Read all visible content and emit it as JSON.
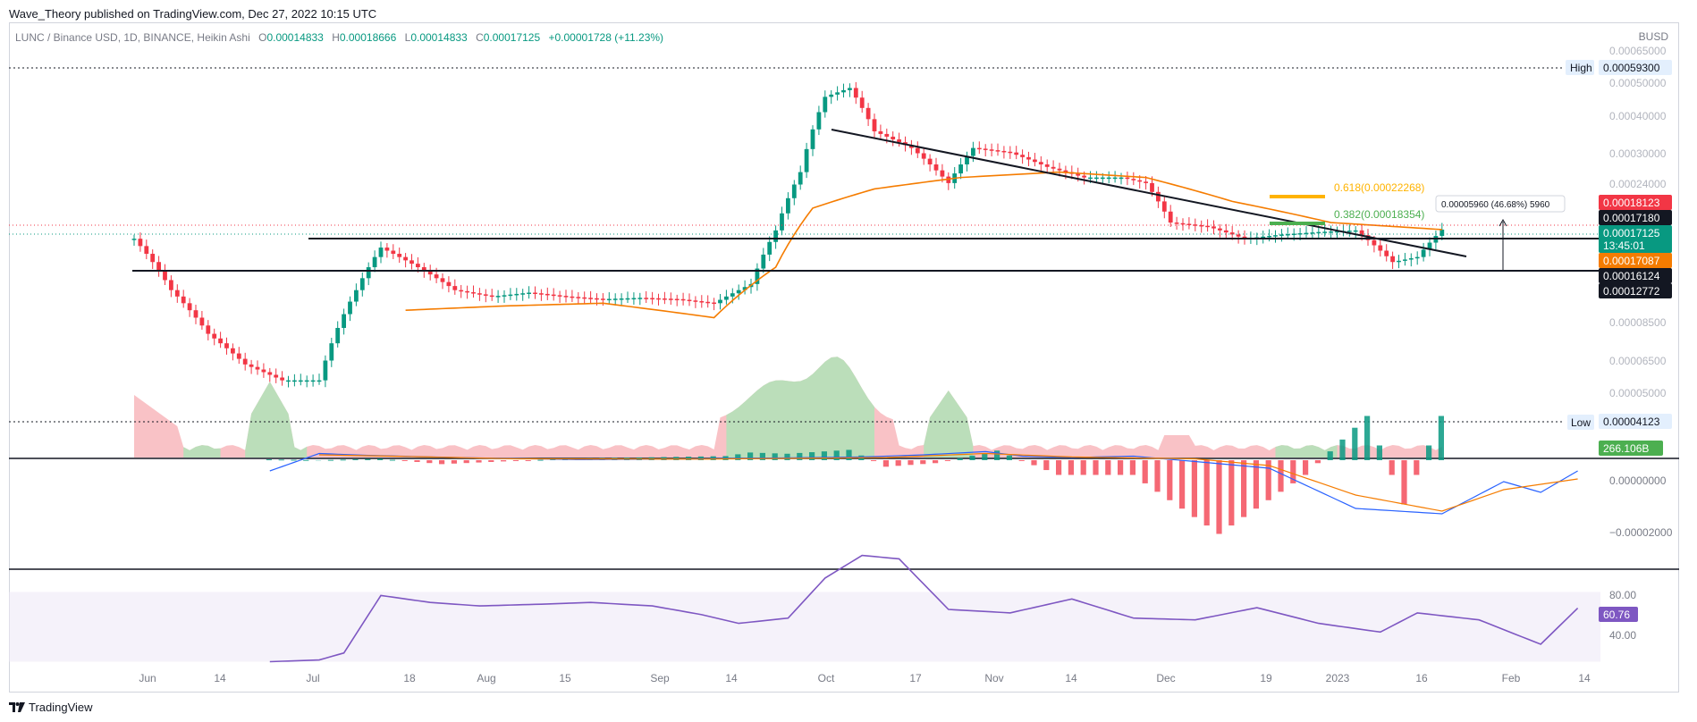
{
  "header": {
    "text": "Wave_Theory published on TradingView.com, Dec 27, 2022 10:15 UTC"
  },
  "legend": {
    "symbol": "LUNC / Binance USD, 1D, BINANCE, Heikin Ashi",
    "o_key": "O",
    "o": "0.00014833",
    "h_key": "H",
    "h": "0.00018666",
    "l_key": "L",
    "l": "0.00014833",
    "c_key": "C",
    "c": "0.00017125",
    "change": "+0.00001728 (+11.23%)"
  },
  "currency": "BUSD",
  "footer": {
    "brand": "TradingView"
  },
  "colors": {
    "up": "#089981",
    "down": "#f23645",
    "ma": "#f57c00",
    "rsi": "#7e57c2",
    "fib618": "#ffb300",
    "fib382": "#4caf50"
  },
  "chart_data": [
    {
      "type": "candlestick",
      "title": "LUNC / Binance USD, 1D, BINANCE, Heikin Ashi",
      "x_tick_labels": [
        "Jun",
        "14",
        "Jul",
        "18",
        "Aug",
        "15",
        "Sep",
        "14",
        "Oct",
        "17",
        "Nov",
        "14",
        "Dec",
        "19",
        "2023",
        "16",
        "Feb",
        "14"
      ],
      "y_tick_labels": [
        "0.00065000",
        "0.00050000",
        "0.00040000",
        "0.00030000",
        "0.00024000",
        "0.00008500",
        "0.00006500",
        "0.00005000"
      ],
      "scale": "log",
      "price_tags": {
        "high_label": "High",
        "high": "0.00059300",
        "low_label": "Low",
        "low": "0.00004123",
        "red": "0.00018123",
        "black1": "0.00017180",
        "current": "0.00017125",
        "countdown": "13:45:01",
        "ma": "0.00017087",
        "black2": "0.00016124",
        "black3": "0.00012772"
      },
      "fib": {
        "f618": "0.618(0.00022268)",
        "f382": "0.382(0.00018354)"
      },
      "measure_label": "0.00005960 (46.68%) 5960",
      "volume_label": "266.106B",
      "series": [
        {
          "name": "price",
          "points": [
            [
              0,
              0.00016
            ],
            [
              6,
              0.00011
            ],
            [
              12,
              8e-05
            ],
            [
              18,
              6.4e-05
            ],
            [
              24,
              5.7e-05
            ],
            [
              30,
              5.7e-05
            ],
            [
              36,
              0.00011
            ],
            [
              40,
              0.00015
            ],
            [
              46,
              0.00013
            ],
            [
              52,
              0.00011
            ],
            [
              58,
              0.000105
            ],
            [
              64,
              0.000108
            ],
            [
              70,
              0.000105
            ],
            [
              76,
              0.000103
            ],
            [
              82,
              0.000104
            ],
            [
              88,
              0.000103
            ],
            [
              94,
              0.0001
            ],
            [
              100,
              0.000115
            ],
            [
              104,
              0.00017
            ],
            [
              108,
              0.00026
            ],
            [
              112,
              0.00045
            ],
            [
              116,
              0.00048
            ],
            [
              120,
              0.00035
            ],
            [
              126,
              0.00031
            ],
            [
              132,
              0.00024
            ],
            [
              136,
              0.00031
            ],
            [
              142,
              0.0003
            ],
            [
              148,
              0.00027
            ],
            [
              154,
              0.00025
            ],
            [
              160,
              0.00025
            ],
            [
              164,
              0.00024
            ],
            [
              168,
              0.00018
            ],
            [
              174,
              0.000175
            ],
            [
              180,
              0.00016
            ],
            [
              186,
              0.000165
            ],
            [
              192,
              0.000168
            ],
            [
              198,
              0.00017
            ],
            [
              204,
              0.000135
            ],
            [
              208,
              0.00014
            ],
            [
              212,
              0.000171
            ]
          ]
        },
        {
          "name": "ma",
          "points": [
            [
              44,
              9.5e-05
            ],
            [
              60,
              9.8e-05
            ],
            [
              76,
              0.0001
            ],
            [
              94,
              9e-05
            ],
            [
              104,
              0.00013
            ],
            [
              110,
              0.0002
            ],
            [
              120,
              0.00023
            ],
            [
              134,
              0.00025
            ],
            [
              150,
              0.00026
            ],
            [
              164,
              0.00025
            ],
            [
              178,
              0.00021
            ],
            [
              194,
              0.00018
            ],
            [
              212,
              0.000171
            ]
          ]
        }
      ]
    },
    {
      "type": "area",
      "name": "volume",
      "value_label": "266.106B"
    },
    {
      "type": "line",
      "name": "macd",
      "y_tick_labels": [
        "0.00000000",
        "−0.00002000"
      ],
      "series": [
        {
          "name": "macd",
          "points": [
            [
              0,
              -4e-06
            ],
            [
              8,
              2.5e-06
            ],
            [
              16,
              1.8e-06
            ],
            [
              30,
              1e-06
            ],
            [
              50,
              2e-07
            ],
            [
              70,
              5e-07
            ],
            [
              96,
              1.2e-06
            ],
            [
              106,
              2e-06
            ],
            [
              116,
              3.2e-06
            ],
            [
              122,
              1.5e-06
            ],
            [
              130,
              1e-06
            ],
            [
              140,
              1.5e-06
            ],
            [
              150,
              -5e-07
            ],
            [
              162,
              -3e-06
            ],
            [
              176,
              -1.8e-05
            ],
            [
              190,
              -2e-05
            ],
            [
              200,
              -8e-06
            ],
            [
              206,
              -1.2e-05
            ],
            [
              212,
              -4e-06
            ]
          ]
        },
        {
          "name": "signal",
          "points": [
            [
              8,
              2e-06
            ],
            [
              20,
              1.5e-06
            ],
            [
              40,
              5e-07
            ],
            [
              70,
              4e-07
            ],
            [
              100,
              1e-06
            ],
            [
              116,
              2.5e-06
            ],
            [
              130,
              1.2e-06
            ],
            [
              150,
              5e-07
            ],
            [
              162,
              -2e-06
            ],
            [
              176,
              -1.3e-05
            ],
            [
              190,
              -1.9e-05
            ],
            [
              200,
              -1.1e-05
            ],
            [
              206,
              -9e-06
            ],
            [
              212,
              -7e-06
            ]
          ]
        }
      ]
    },
    {
      "type": "line",
      "name": "rsi",
      "y_tick_labels": [
        "80.00",
        "40.00"
      ],
      "value_label": "60.76",
      "series": [
        {
          "name": "rsi",
          "points": [
            [
              0,
              30
            ],
            [
              8,
              31
            ],
            [
              12,
              35
            ],
            [
              18,
              68
            ],
            [
              26,
              64
            ],
            [
              34,
              62
            ],
            [
              44,
              63
            ],
            [
              52,
              64
            ],
            [
              62,
              62
            ],
            [
              70,
              57
            ],
            [
              76,
              52
            ],
            [
              84,
              55
            ],
            [
              90,
              78
            ],
            [
              96,
              91
            ],
            [
              102,
              89
            ],
            [
              110,
              60
            ],
            [
              120,
              58
            ],
            [
              130,
              66
            ],
            [
              140,
              55
            ],
            [
              150,
              54
            ],
            [
              160,
              61
            ],
            [
              170,
              52
            ],
            [
              180,
              47
            ],
            [
              186,
              58
            ],
            [
              196,
              54
            ],
            [
              206,
              40
            ],
            [
              212,
              60.76
            ]
          ]
        }
      ]
    }
  ]
}
